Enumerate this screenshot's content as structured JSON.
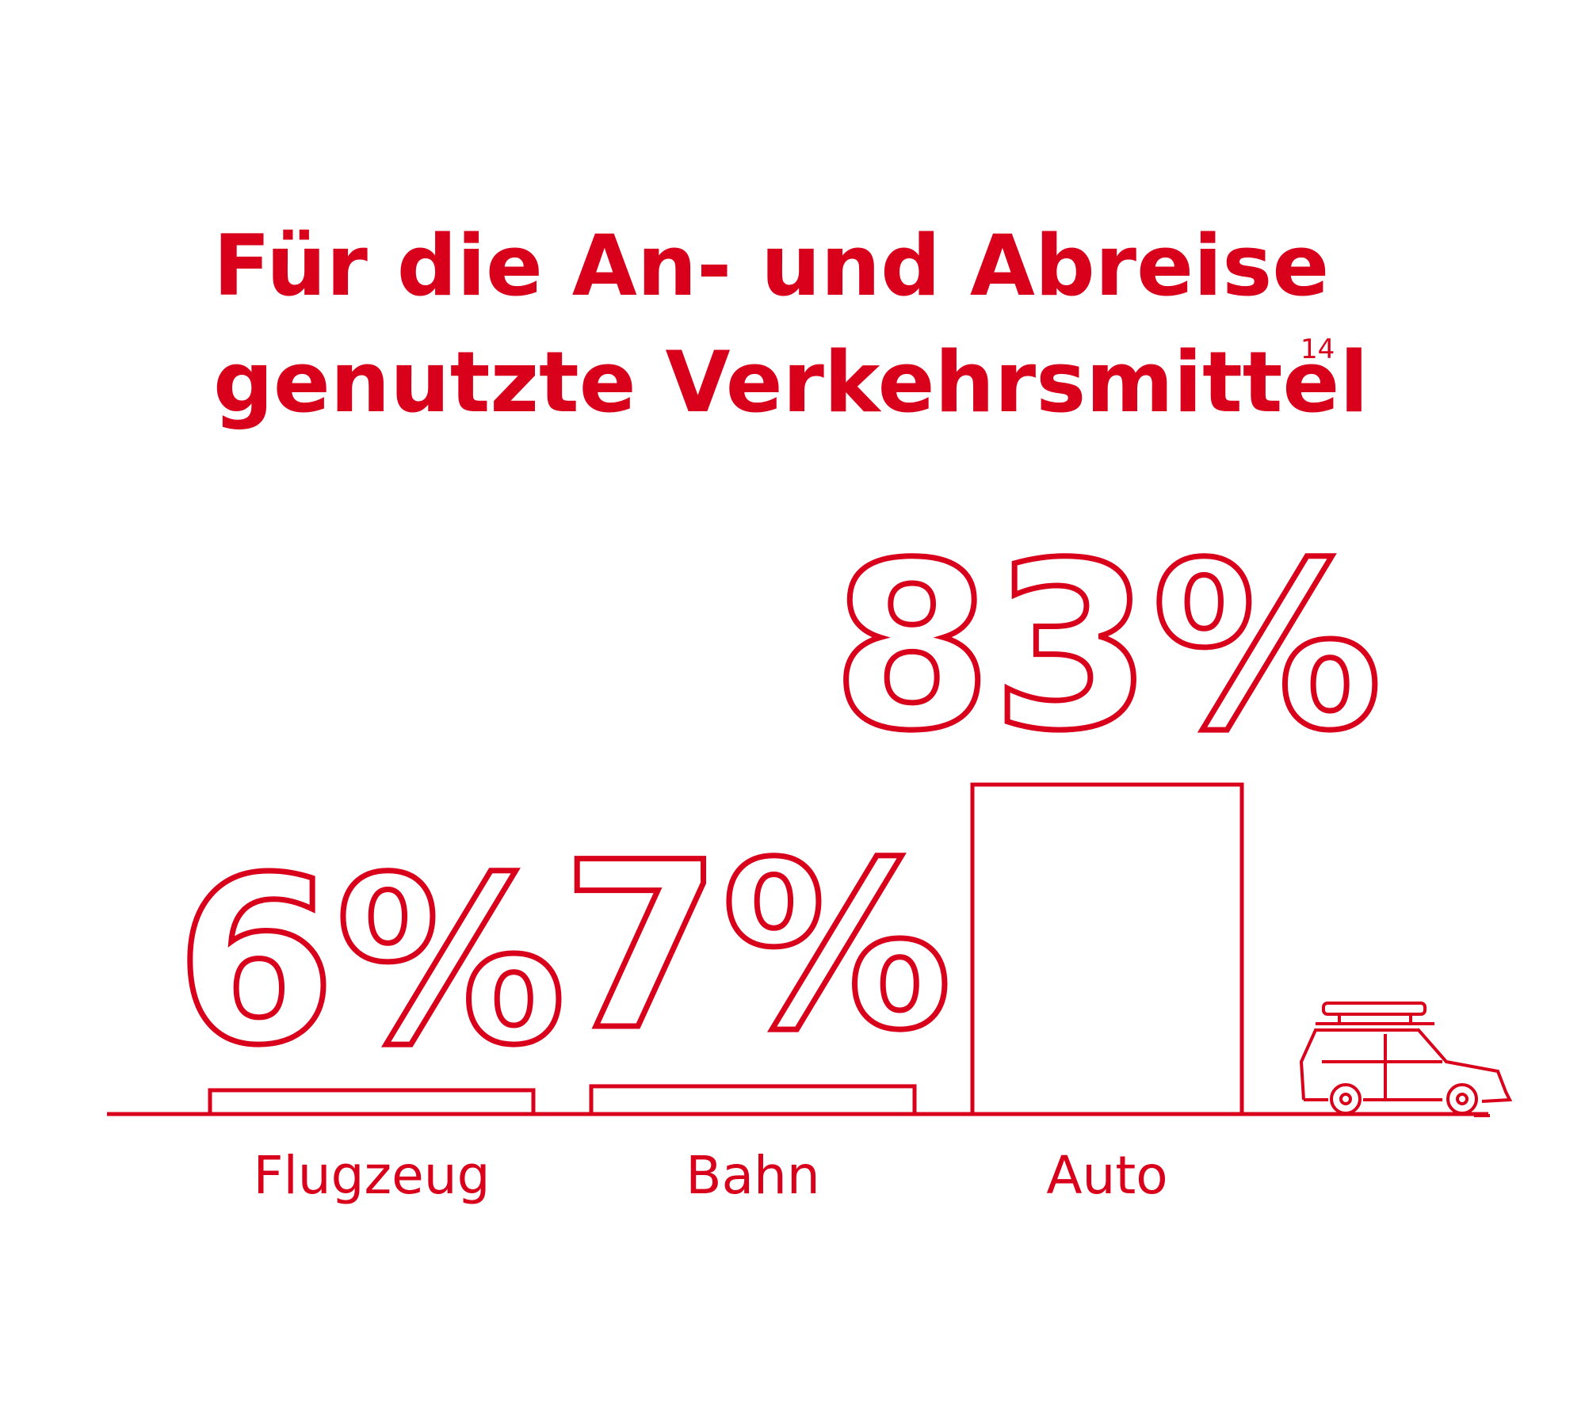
{
  "chart_data": {
    "type": "bar",
    "title_lines": [
      "Für die An- und Abreise",
      "genutzte Verkehrsmittel"
    ],
    "title_footnote": "14",
    "categories": [
      "Flugzeug",
      "Bahn",
      "Auto"
    ],
    "values": [
      6,
      7,
      83
    ],
    "value_labels": [
      "6%",
      "7%",
      "83%"
    ],
    "color": "#d9001b"
  }
}
